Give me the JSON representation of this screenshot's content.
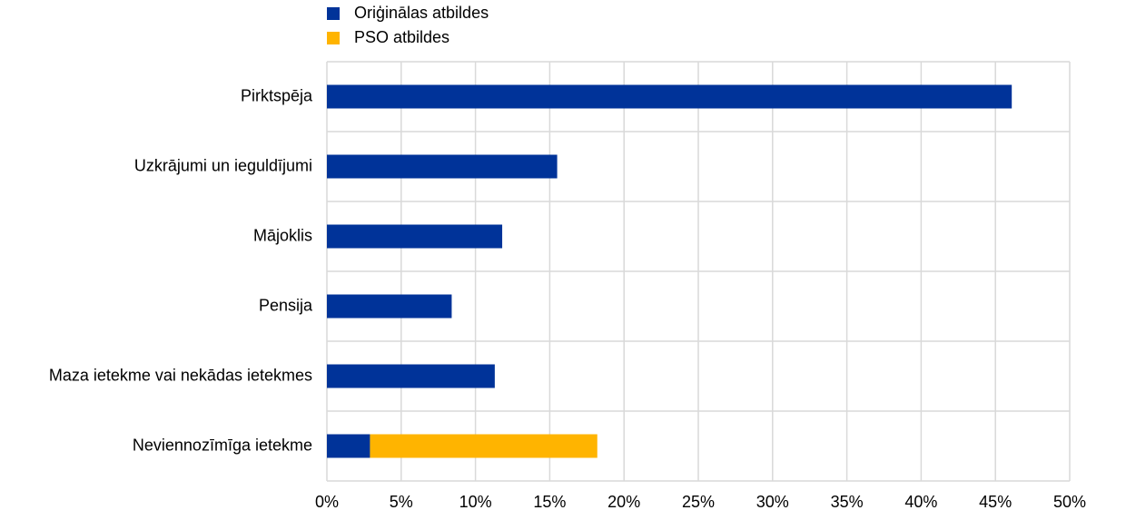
{
  "chart_data": {
    "type": "bar",
    "orientation": "horizontal",
    "stacked": true,
    "categories": [
      "Pirktspēja",
      "Uzkrājumi un ieguldījumi",
      "Mājoklis",
      "Pensija",
      "Maza ietekme vai nekādas ietekmes",
      "Neviennozīmīga ietekme"
    ],
    "series": [
      {
        "name": "Oriģinālas atbildes",
        "color": "#003399",
        "values": [
          46.1,
          15.5,
          11.8,
          8.4,
          11.3,
          2.9
        ]
      },
      {
        "name": "PSO atbildes",
        "color": "#ffb400",
        "values": [
          null,
          null,
          null,
          null,
          null,
          15.3
        ]
      }
    ],
    "xlim": [
      0,
      50
    ],
    "xticks": [
      {
        "value": 0,
        "label": "0%"
      },
      {
        "value": 5,
        "label": "5%"
      },
      {
        "value": 10,
        "label": "10%"
      },
      {
        "value": 15,
        "label": "15%"
      },
      {
        "value": 20,
        "label": "20%"
      },
      {
        "value": 25,
        "label": "25%"
      },
      {
        "value": 30,
        "label": "30%"
      },
      {
        "value": 35,
        "label": "35%"
      },
      {
        "value": 40,
        "label": "40%"
      },
      {
        "value": 45,
        "label": "45%"
      },
      {
        "value": 50,
        "label": "50%"
      }
    ],
    "grid": true,
    "legend": "top"
  }
}
